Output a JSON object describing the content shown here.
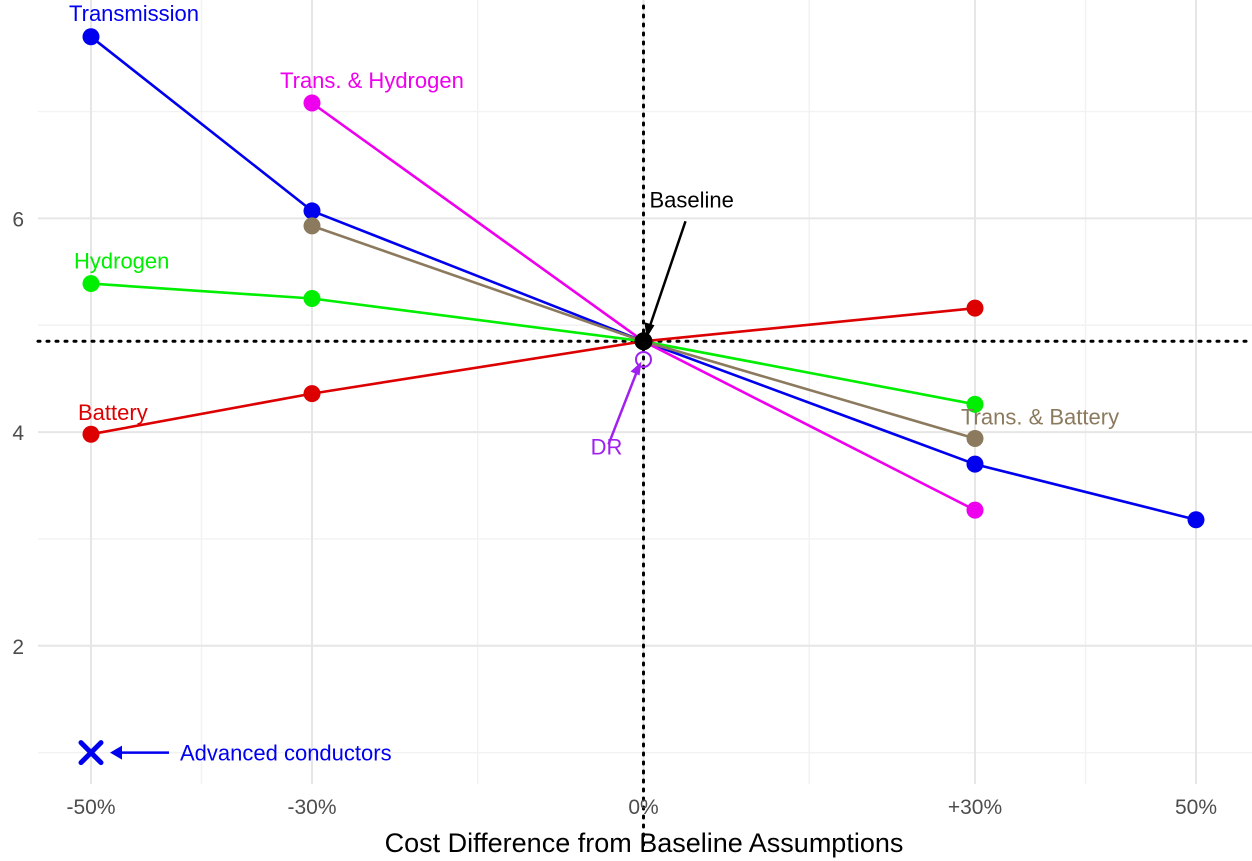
{
  "chart_data": {
    "type": "line",
    "title": "",
    "xlabel": "Cost Difference from Baseline Assumptions",
    "ylabel": "",
    "xlim": [
      -52,
      53
    ],
    "ylim": [
      0.5,
      8.0
    ],
    "x_ticks": [
      {
        "value": -50,
        "label": "-50%"
      },
      {
        "value": -30,
        "label": "-30%"
      },
      {
        "value": 0,
        "label": "0%"
      },
      {
        "value": 30,
        "label": "+30%"
      },
      {
        "value": 50,
        "label": "50%"
      }
    ],
    "y_ticks": [
      {
        "value": 2,
        "label": "2"
      },
      {
        "value": 4,
        "label": "4"
      },
      {
        "value": 6,
        "label": "6"
      }
    ],
    "grid": true,
    "legend": "none",
    "reference_lines": {
      "x": 0,
      "y": 4.85
    },
    "series": [
      {
        "name": "Transmission",
        "color": "#0000ee",
        "label_anchor": "start",
        "points": [
          {
            "x": -50,
            "y": 7.7
          },
          {
            "x": -30,
            "y": 6.07
          },
          {
            "x": 0,
            "y": 4.85
          },
          {
            "x": 30,
            "y": 3.7
          },
          {
            "x": 50,
            "y": 3.18
          }
        ]
      },
      {
        "name": "Trans. & Hydrogen",
        "color": "#ee00ee",
        "label_anchor": "start",
        "points": [
          {
            "x": -30,
            "y": 7.08
          },
          {
            "x": 0,
            "y": 4.85
          },
          {
            "x": 30,
            "y": 3.27
          }
        ]
      },
      {
        "name": "Hydrogen",
        "color": "#00ee00",
        "label_anchor": "start",
        "points": [
          {
            "x": -50,
            "y": 5.39
          },
          {
            "x": -30,
            "y": 5.25
          },
          {
            "x": 0,
            "y": 4.85
          },
          {
            "x": 30,
            "y": 4.26
          }
        ]
      },
      {
        "name": "Trans. & Battery",
        "color": "#8b7a5e",
        "label_anchor": "middle",
        "points": [
          {
            "x": -30,
            "y": 5.93
          },
          {
            "x": 0,
            "y": 4.85
          },
          {
            "x": 30,
            "y": 3.94
          }
        ]
      },
      {
        "name": "Battery",
        "color": "#dd0000",
        "label_anchor": "start",
        "points": [
          {
            "x": -50,
            "y": 3.98
          },
          {
            "x": -30,
            "y": 4.36
          },
          {
            "x": 0,
            "y": 4.85
          },
          {
            "x": 30,
            "y": 5.16
          }
        ]
      }
    ],
    "baseline_point": {
      "label": "Baseline",
      "x": 0,
      "y": 4.85,
      "color": "#000000"
    },
    "dr_point": {
      "label": "DR",
      "x": 0,
      "y": 4.68,
      "color": "#a020f0",
      "marker": "open-circle"
    },
    "advanced_conductors_point": {
      "label": "Advanced conductors",
      "x": -50,
      "y": 1.0,
      "color": "#0000ee",
      "marker": "x"
    }
  }
}
